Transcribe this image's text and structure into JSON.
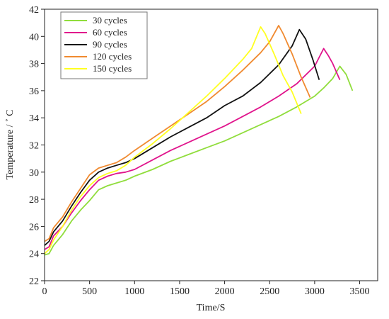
{
  "chart_data": {
    "type": "line",
    "title": "",
    "xlabel": "Time/S",
    "ylabel": "Temperature / ˚ C",
    "xlim": [
      0,
      3700
    ],
    "ylim": [
      22,
      42
    ],
    "xticks": [
      0,
      500,
      1000,
      1500,
      2000,
      2500,
      3000,
      3500
    ],
    "yticks": [
      22,
      24,
      26,
      28,
      30,
      32,
      34,
      36,
      38,
      40,
      42
    ],
    "grid": false,
    "legend": "top-left",
    "series": [
      {
        "name": "30 cycles",
        "color": "#90dd3c",
        "x": [
          0,
          50,
          100,
          200,
          300,
          400,
          500,
          600,
          700,
          800,
          900,
          1000,
          1200,
          1400,
          1600,
          1800,
          2000,
          2200,
          2400,
          2600,
          2800,
          3000,
          3100,
          3200,
          3280,
          3350,
          3420
        ],
        "y": [
          23.9,
          24.0,
          24.6,
          25.4,
          26.4,
          27.2,
          27.9,
          28.7,
          29.0,
          29.2,
          29.4,
          29.7,
          30.2,
          30.8,
          31.3,
          31.8,
          32.3,
          32.9,
          33.5,
          34.1,
          34.8,
          35.6,
          36.2,
          36.9,
          37.8,
          37.2,
          36.0
        ]
      },
      {
        "name": "60 cycles",
        "color": "#e0148c",
        "x": [
          0,
          50,
          100,
          200,
          300,
          400,
          500,
          600,
          700,
          800,
          900,
          1000,
          1200,
          1400,
          1600,
          1800,
          2000,
          2200,
          2400,
          2600,
          2800,
          3000,
          3100,
          3150,
          3200,
          3280
        ],
        "y": [
          24.3,
          24.5,
          25.3,
          26.0,
          27.0,
          27.9,
          28.7,
          29.4,
          29.7,
          29.9,
          30.0,
          30.2,
          30.9,
          31.6,
          32.2,
          32.8,
          33.4,
          34.1,
          34.8,
          35.6,
          36.5,
          37.8,
          39.1,
          38.6,
          38.0,
          36.8
        ]
      },
      {
        "name": "90 cycles",
        "color": "#111111",
        "x": [
          0,
          50,
          100,
          200,
          300,
          400,
          500,
          600,
          700,
          800,
          900,
          1000,
          1200,
          1400,
          1600,
          1800,
          2000,
          2200,
          2400,
          2600,
          2750,
          2830,
          2900,
          2980,
          3050
        ],
        "y": [
          24.6,
          24.9,
          25.6,
          26.4,
          27.5,
          28.5,
          29.4,
          30.0,
          30.3,
          30.5,
          30.7,
          31.0,
          31.8,
          32.6,
          33.3,
          34.0,
          34.9,
          35.6,
          36.6,
          37.9,
          39.3,
          40.5,
          39.8,
          38.3,
          36.8
        ]
      },
      {
        "name": "120 cycles",
        "color": "#f08a30",
        "x": [
          0,
          50,
          100,
          200,
          300,
          400,
          500,
          600,
          700,
          800,
          900,
          1000,
          1200,
          1400,
          1600,
          1800,
          2000,
          2200,
          2400,
          2500,
          2600,
          2650,
          2750,
          2850,
          2950
        ],
        "y": [
          24.9,
          25.1,
          25.9,
          26.7,
          27.8,
          28.8,
          29.8,
          30.3,
          30.5,
          30.7,
          31.1,
          31.6,
          32.5,
          33.4,
          34.3,
          35.2,
          36.3,
          37.5,
          38.8,
          39.6,
          40.8,
          40.2,
          38.7,
          37.0,
          35.5
        ]
      },
      {
        "name": "150 cycles",
        "color": "#ffff22",
        "x": [
          0,
          50,
          100,
          200,
          300,
          400,
          500,
          600,
          700,
          800,
          900,
          1000,
          1200,
          1400,
          1600,
          1800,
          2000,
          2200,
          2300,
          2400,
          2450,
          2550,
          2650,
          2750,
          2850
        ],
        "y": [
          24.0,
          24.3,
          25.0,
          26.0,
          27.2,
          28.2,
          29.0,
          29.6,
          29.9,
          30.1,
          30.5,
          31.1,
          32.1,
          33.2,
          34.4,
          35.6,
          36.9,
          38.3,
          39.1,
          40.7,
          40.2,
          38.7,
          37.1,
          35.9,
          34.3
        ]
      }
    ]
  }
}
